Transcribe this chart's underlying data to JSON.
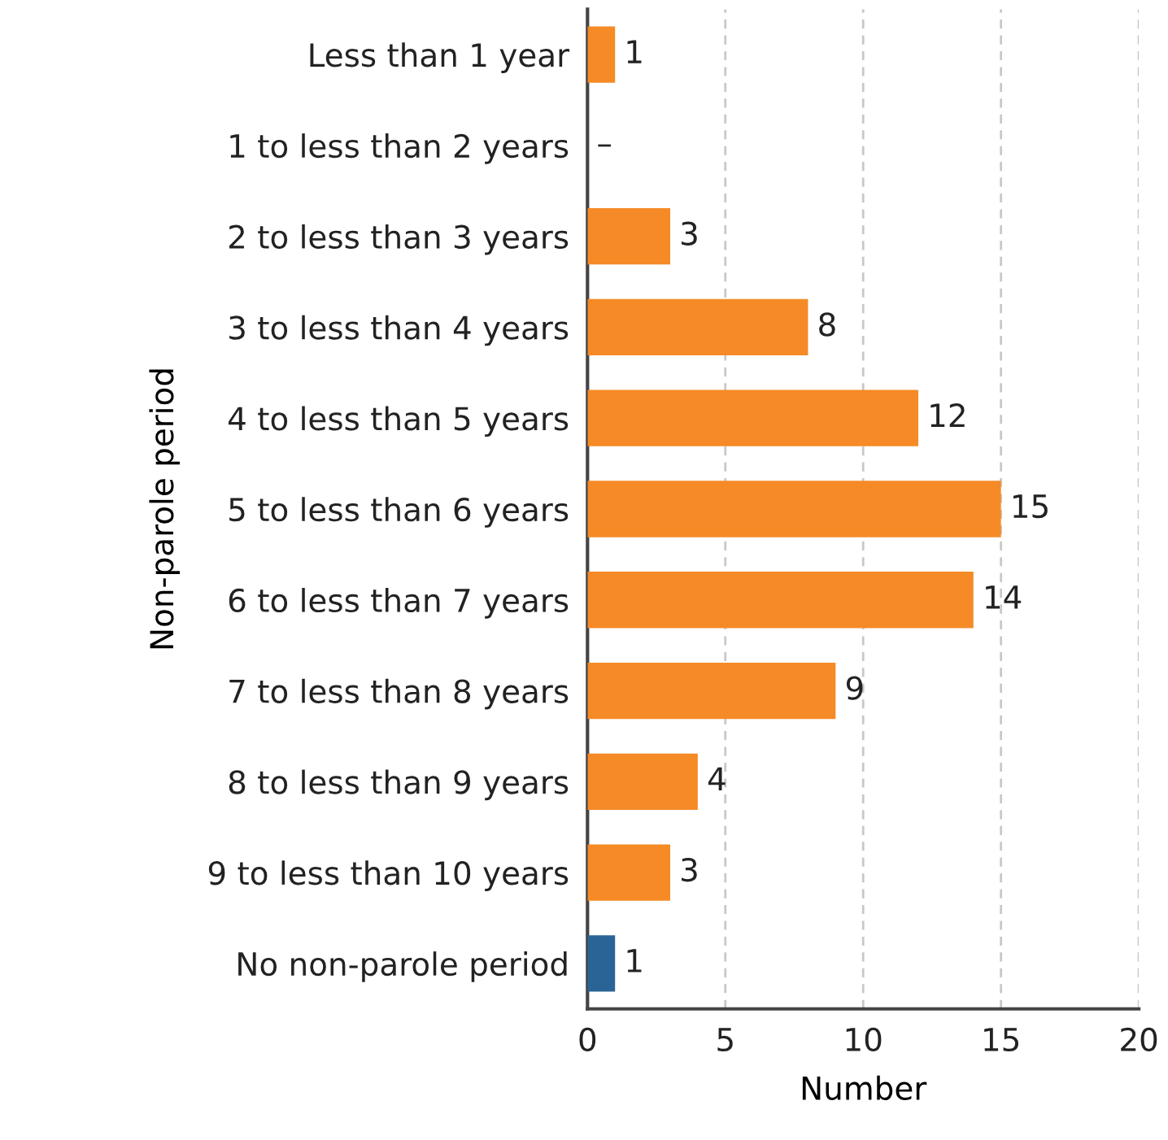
{
  "chart_data": {
    "type": "bar",
    "orientation": "horizontal",
    "xlabel": "Number",
    "ylabel": "Non-parole period",
    "categories": [
      "Less than 1 year",
      "1 to less than 2 years",
      "2 to less than 3 years",
      "3 to less than 4 years",
      "4 to less than 5 years",
      "5 to less than 6 years",
      "6 to less than 7 years",
      "7 to less than 8 years",
      "8 to less than 9 years",
      "9 to less than 10 years",
      "No non-parole period"
    ],
    "values": [
      1,
      0,
      3,
      8,
      12,
      15,
      14,
      9,
      4,
      3,
      1
    ],
    "value_labels": [
      "1",
      "–",
      "3",
      "8",
      "12",
      "15",
      "14",
      "9",
      "4",
      "3",
      "1"
    ],
    "colors": [
      "#f58a26",
      "#f58a26",
      "#f58a26",
      "#f58a26",
      "#f58a26",
      "#f58a26",
      "#f58a26",
      "#f58a26",
      "#f58a26",
      "#f58a26",
      "#2a6496"
    ],
    "xlim": [
      0,
      20
    ],
    "xticks": [
      0,
      5,
      10,
      15,
      20
    ],
    "grid": "x"
  }
}
